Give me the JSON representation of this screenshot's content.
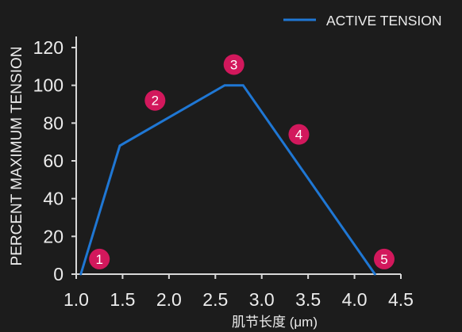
{
  "chart_data": {
    "type": "line",
    "title": "",
    "xlabel": "肌节长度 (μm)",
    "ylabel": "PERCENT MAXIMUM TENSION",
    "xlim": [
      1.0,
      4.5
    ],
    "ylim": [
      0,
      120
    ],
    "xticks": [
      "1.0",
      "1.5",
      "2.0",
      "2.5",
      "3.0",
      "3.5",
      "4.0",
      "4.5"
    ],
    "yticks": [
      "0",
      "20",
      "40",
      "60",
      "80",
      "100",
      "120"
    ],
    "grid": false,
    "legend": "top-right",
    "series": [
      {
        "name": "ACTIVE TENSION",
        "color": "#1f77d4",
        "x": [
          1.05,
          1.47,
          2.6,
          2.8,
          4.22
        ],
        "y": [
          0,
          68,
          100,
          100,
          0
        ]
      }
    ],
    "annotations": [
      {
        "text": "1",
        "x": 1.25,
        "y": 8
      },
      {
        "text": "2",
        "x": 1.85,
        "y": 92
      },
      {
        "text": "3",
        "x": 2.7,
        "y": 111
      },
      {
        "text": "4",
        "x": 3.4,
        "y": 74
      },
      {
        "text": "5",
        "x": 4.32,
        "y": 8
      }
    ]
  },
  "colors": {
    "background": "#1c1c1c",
    "text": "#ececec",
    "axis": "#d8d8d8",
    "annotation": "#d2185c"
  }
}
